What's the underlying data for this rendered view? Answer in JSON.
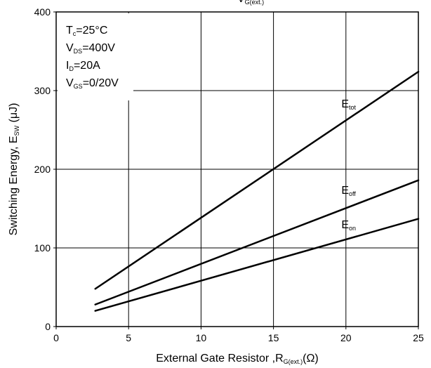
{
  "chart_data": {
    "type": "line",
    "title": "",
    "xlabel": {
      "main": "External Gate Resistor ,R",
      "sub": "G(ext.)",
      "unit": "(Ω)"
    },
    "ylabel": {
      "main": "Switching Energy, E",
      "sub": "SW",
      "unit": " (μJ)"
    },
    "xlim": [
      0,
      25
    ],
    "ylim": [
      0,
      400
    ],
    "xticks": [
      0,
      5,
      10,
      15,
      20,
      25
    ],
    "yticks": [
      0,
      100,
      200,
      300,
      400
    ],
    "grid": true,
    "series": [
      {
        "name": "E_tot",
        "label_main": "E",
        "label_sub": "tot",
        "color": "#000000",
        "x": [
          2.7,
          25
        ],
        "y": [
          48,
          324
        ]
      },
      {
        "name": "E_off",
        "label_main": "E",
        "label_sub": "off",
        "color": "#000000",
        "x": [
          2.7,
          25
        ],
        "y": [
          28,
          186
        ]
      },
      {
        "name": "E_on",
        "label_main": "E",
        "label_sub": "on",
        "color": "#000000",
        "x": [
          2.7,
          25
        ],
        "y": [
          20,
          137
        ]
      }
    ],
    "conditions": [
      {
        "main": "T",
        "sub": "c",
        "value": "=25°C"
      },
      {
        "main": "V",
        "sub": "DS",
        "value": "=400V"
      },
      {
        "main": "I",
        "sub": "D",
        "value": "=20A"
      },
      {
        "main": "V",
        "sub": "GS",
        "value": "=0/20V"
      }
    ],
    "top_cutoff_label": {
      "main": "V",
      "sub": "G(ext.)"
    }
  }
}
